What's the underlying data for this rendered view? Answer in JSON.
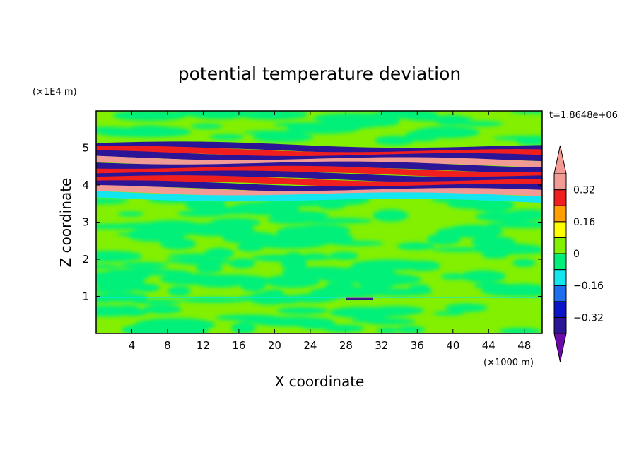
{
  "chart_data": {
    "type": "heatmap",
    "title": "potential temperature deviation",
    "xlabel": "X coordinate",
    "ylabel": "Z coordinate",
    "x_unit": "(×1000 m)",
    "y_unit": "(×1E4 m)",
    "time_label": "t=1.8648e+06",
    "xlim": [
      0,
      50
    ],
    "ylim": [
      0,
      6
    ],
    "x_ticks": [
      4,
      8,
      12,
      16,
      20,
      24,
      28,
      32,
      36,
      40,
      44,
      48
    ],
    "y_ticks": [
      1,
      2,
      3,
      4,
      5
    ],
    "colorbar": {
      "levels": [
        -0.4,
        -0.32,
        -0.24,
        -0.16,
        -0.08,
        0,
        0.08,
        0.16,
        0.24,
        0.32,
        0.4
      ],
      "labels": [
        "0.32",
        "0.16",
        "0",
        "−0.16",
        "−0.32"
      ],
      "label_values": [
        0.32,
        0.16,
        0,
        -0.16,
        -0.32
      ],
      "colors": [
        "#6a0aa8",
        "#2b1496",
        "#0a14c8",
        "#1e6ef0",
        "#14e6f0",
        "#00f07a",
        "#82f000",
        "#ffff00",
        "#ffa000",
        "#f01e1e",
        "#f29a94"
      ],
      "extend": "both"
    },
    "bands": [
      {
        "y": 5.05,
        "value": -0.34
      },
      {
        "y": 4.92,
        "value": 0.28
      },
      {
        "y": 4.8,
        "value": -0.38
      },
      {
        "y": 4.68,
        "value": 0.36
      },
      {
        "y": 4.55,
        "value": -0.36
      },
      {
        "y": 4.42,
        "value": 0.3
      },
      {
        "y": 4.28,
        "value": -0.36
      },
      {
        "y": 4.14,
        "value": 0.26
      },
      {
        "y": 3.99,
        "value": -0.34
      },
      {
        "y": 3.86,
        "value": 0.38
      },
      {
        "y": 3.73,
        "value": -0.12
      }
    ]
  }
}
